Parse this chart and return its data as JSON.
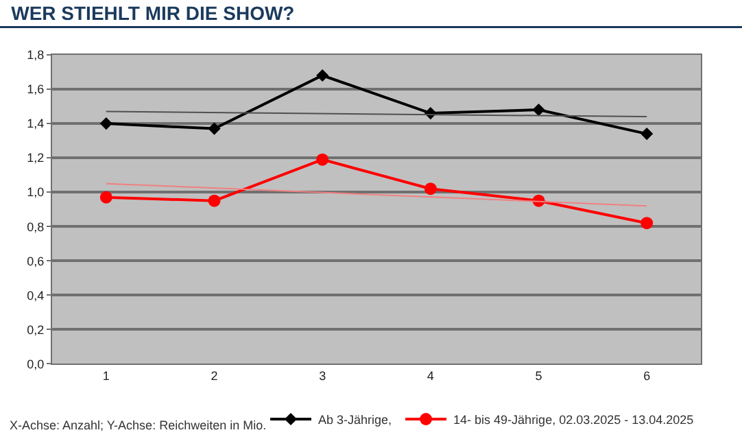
{
  "chart_data": {
    "type": "line",
    "title": "WER STIEHLT MIR DIE SHOW?",
    "categories": [
      "1",
      "2",
      "3",
      "4",
      "5",
      "6"
    ],
    "series": [
      {
        "name": "Ab 3-Jährige,",
        "color": "#000000",
        "marker": "diamond",
        "values": [
          1.4,
          1.37,
          1.68,
          1.46,
          1.48,
          1.34
        ]
      },
      {
        "name": "14- bis 49-Jährige, 02.03.2025 - 13.04.2025",
        "color": "#ff0000",
        "marker": "circle",
        "values": [
          0.97,
          0.95,
          1.19,
          1.02,
          0.95,
          0.82
        ]
      },
      {
        "color": "#505050",
        "marker": "none",
        "values": [
          1.47,
          null,
          null,
          null,
          null,
          1.44
        ]
      },
      {
        "color": "#f08080",
        "marker": "none",
        "values": [
          1.05,
          null,
          null,
          null,
          null,
          0.92
        ]
      }
    ],
    "ylim": [
      0,
      1.8
    ],
    "yticks": [
      {
        "value": 0,
        "label": "0,0"
      },
      {
        "value": 0.2,
        "label": "0,2"
      },
      {
        "value": 0.4,
        "label": "0,4"
      },
      {
        "value": 0.6,
        "label": "0,6"
      },
      {
        "value": 0.8,
        "label": "0,8"
      },
      {
        "value": 1.0,
        "label": "1,0"
      },
      {
        "value": 1.2,
        "label": "1,2"
      },
      {
        "value": 1.4,
        "label": "1,4"
      },
      {
        "value": 1.6,
        "label": "1,6"
      },
      {
        "value": 1.8,
        "label": "1,8"
      }
    ],
    "grid": "y",
    "legend": "bottom right",
    "line_style": "solid",
    "annotations": [
      "X-Achse: Anzahl; Y-Achse: Reichweiten in Mio."
    ]
  }
}
